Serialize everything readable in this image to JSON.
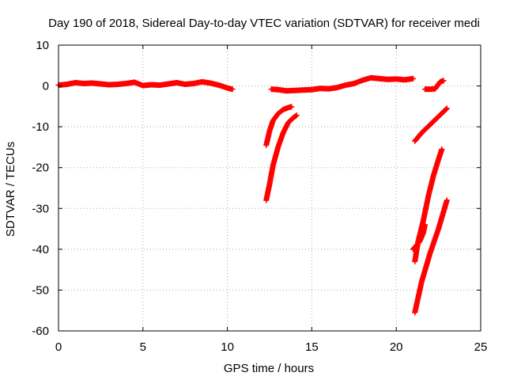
{
  "chart_data": {
    "type": "scatter",
    "title": "Day 190 of 2018, Sidereal Day-to-day VTEC variation (SDTVAR) for receiver medi",
    "xlabel": "GPS time / hours",
    "ylabel": "SDTVAR / TECUs",
    "xlim": [
      0,
      25
    ],
    "ylim": [
      -60,
      10
    ],
    "xticks": [
      0,
      5,
      10,
      15,
      20,
      25
    ],
    "yticks": [
      -60,
      -50,
      -40,
      -30,
      -20,
      -10,
      0,
      10
    ],
    "grid": true,
    "marker": "+",
    "series_color": "#ff0000",
    "series": [
      {
        "values": [
          [
            0.0,
            0.2
          ],
          [
            0.5,
            0.4
          ],
          [
            1.0,
            0.8
          ],
          [
            1.5,
            0.6
          ],
          [
            2.0,
            0.7
          ],
          [
            2.5,
            0.5
          ],
          [
            3.0,
            0.3
          ],
          [
            3.5,
            0.4
          ],
          [
            4.0,
            0.6
          ],
          [
            4.5,
            0.9
          ],
          [
            5.0,
            0.1
          ],
          [
            5.5,
            0.3
          ],
          [
            6.0,
            0.2
          ],
          [
            6.5,
            0.5
          ],
          [
            7.0,
            0.8
          ],
          [
            7.5,
            0.4
          ],
          [
            8.0,
            0.6
          ],
          [
            8.5,
            1.0
          ],
          [
            9.0,
            0.7
          ],
          [
            9.5,
            0.2
          ],
          [
            10.0,
            -0.5
          ],
          [
            10.3,
            -0.8
          ]
        ]
      },
      {
        "values": [
          [
            12.6,
            -0.8
          ],
          [
            13.0,
            -0.9
          ],
          [
            13.5,
            -1.2
          ],
          [
            14.0,
            -1.1
          ],
          [
            14.5,
            -1.0
          ],
          [
            15.0,
            -0.9
          ],
          [
            15.5,
            -0.6
          ],
          [
            16.0,
            -0.7
          ],
          [
            16.5,
            -0.4
          ],
          [
            17.0,
            0.2
          ],
          [
            17.5,
            0.6
          ],
          [
            18.0,
            1.4
          ],
          [
            18.5,
            2.0
          ],
          [
            19.0,
            1.8
          ],
          [
            19.5,
            1.6
          ],
          [
            20.0,
            1.7
          ],
          [
            20.5,
            1.5
          ],
          [
            21.0,
            1.8
          ]
        ]
      },
      {
        "values": [
          [
            21.7,
            -0.8
          ],
          [
            22.0,
            -0.8
          ],
          [
            22.3,
            -0.7
          ],
          [
            22.6,
            1.0
          ],
          [
            22.8,
            1.3
          ]
        ]
      },
      {
        "values": [
          [
            12.3,
            -14.5
          ],
          [
            12.5,
            -11.0
          ],
          [
            12.7,
            -8.5
          ],
          [
            13.0,
            -6.8
          ],
          [
            13.3,
            -5.8
          ],
          [
            13.6,
            -5.3
          ],
          [
            13.8,
            -5.1
          ]
        ]
      },
      {
        "values": [
          [
            12.3,
            -28.0
          ],
          [
            12.5,
            -24.0
          ],
          [
            12.7,
            -19.5
          ],
          [
            13.0,
            -15.0
          ],
          [
            13.3,
            -11.5
          ],
          [
            13.6,
            -9.0
          ],
          [
            13.9,
            -7.8
          ],
          [
            14.1,
            -7.2
          ]
        ]
      },
      {
        "values": [
          [
            21.1,
            -13.5
          ],
          [
            21.5,
            -11.5
          ],
          [
            22.0,
            -9.5
          ],
          [
            22.5,
            -7.5
          ],
          [
            23.0,
            -5.5
          ]
        ]
      },
      {
        "values": [
          [
            21.1,
            -43.0
          ],
          [
            21.3,
            -38.0
          ],
          [
            21.6,
            -33.0
          ],
          [
            21.9,
            -27.0
          ],
          [
            22.2,
            -22.0
          ],
          [
            22.5,
            -18.0
          ],
          [
            22.7,
            -15.5
          ]
        ]
      },
      {
        "values": [
          [
            21.1,
            -55.5
          ],
          [
            21.5,
            -48.0
          ],
          [
            22.0,
            -41.0
          ],
          [
            22.5,
            -35.0
          ],
          [
            23.0,
            -28.0
          ]
        ]
      },
      {
        "values": [
          [
            21.0,
            -40.0
          ],
          [
            21.2,
            -39.0
          ],
          [
            21.4,
            -38.0
          ],
          [
            21.6,
            -36.0
          ],
          [
            21.7,
            -34.0
          ]
        ]
      }
    ]
  }
}
